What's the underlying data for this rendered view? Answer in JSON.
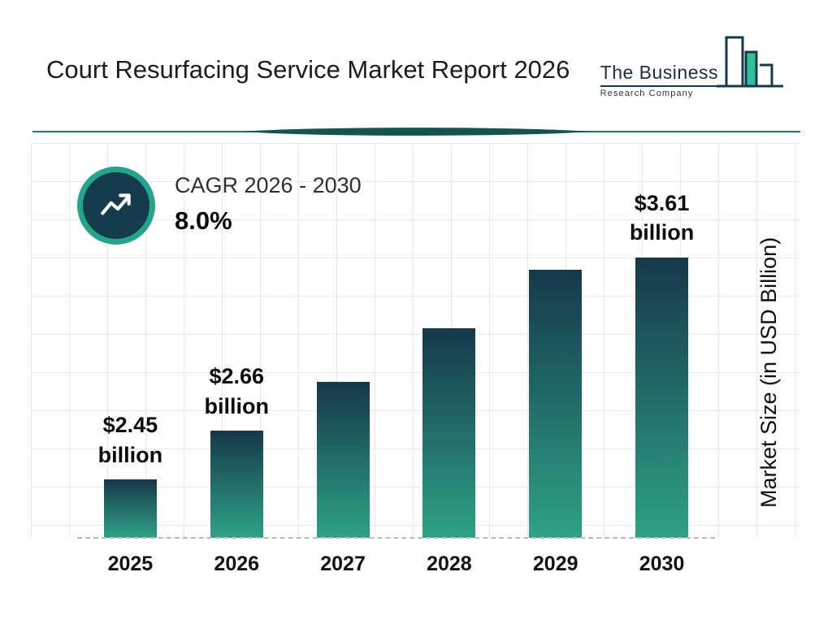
{
  "header": {
    "title": "Court Resurfacing Service Market Report 2026",
    "logo": {
      "line1": "The Business",
      "line2": "Research Company"
    }
  },
  "cagr": {
    "label": "CAGR 2026 - 2030",
    "value": "8.0%"
  },
  "chart_data": {
    "type": "bar",
    "title": "Court Resurfacing Service Market Report 2026",
    "categories": [
      "2025",
      "2026",
      "2027",
      "2028",
      "2029",
      "2030"
    ],
    "values": [
      2.45,
      2.66,
      2.87,
      3.1,
      3.35,
      3.61
    ],
    "bar_labels": [
      "$2.45 billion",
      "$2.66 billion",
      "",
      "",
      "",
      "$3.61 billion"
    ],
    "xlabel": "",
    "ylabel": "Market Size (in USD Billion)",
    "ylim": [
      2.2,
      3.7
    ],
    "grid": true,
    "legend": "none",
    "colors": {
      "bar_gradient_top": "#16384a",
      "bar_gradient_bottom": "#2ea285",
      "accent_teal": "#23a58b",
      "navy": "#143c4d",
      "logo_green": "#2fbf96",
      "divider_teal": "#1c7f6d"
    }
  }
}
